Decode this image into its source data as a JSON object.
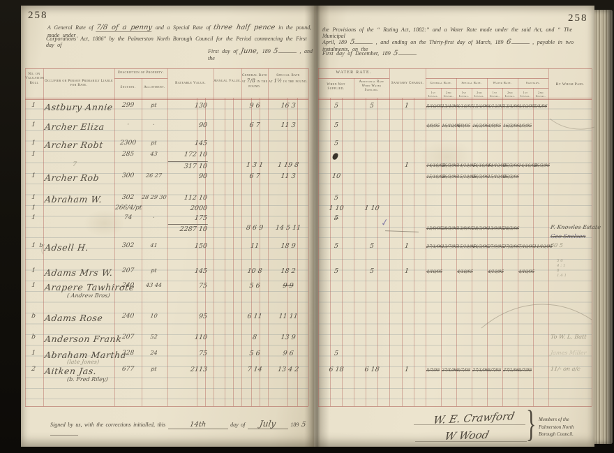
{
  "book": {
    "left_page_number": "258",
    "right_page_number": "258"
  },
  "colors": {
    "page": "#e9e1cb",
    "ruling_red": "#b05c54",
    "ruling_blue": "#7d8a91",
    "ink": "#564f45",
    "pencil": "#98937f",
    "purple": "#7f76a4"
  },
  "left_header": {
    "l1a": "A General Rate of",
    "l1_hw1": "7/8 of a penny",
    "l1b": "and a Special Rate of",
    "l1_hw2": "three half pence",
    "l1c": "in the pound, made under",
    "l2": "Corporations' Act, 1886\" by the Palmerston North Borough Council for the Period commencing the First day of",
    "l3a": "First day of",
    "l3_hw1": "June,",
    "l3b": "189",
    "l3_hw2": "5",
    "l3c": ", and the"
  },
  "right_header": {
    "l1": "the Provisions of the “ Rating Act, 1882:” and a Water Rate made under the said Act, and “ The Municipal",
    "l2a": "April, 189",
    "l2_hw1": "5",
    "l2b": ", and ending on the Thirty-first day of March, 189",
    "l2_hw2": "6",
    "l2c": ", payable in two instalments, on the",
    "l3a": "First day of December, 189",
    "l3_hw1": "5",
    "l3b": "."
  },
  "table_headers": {
    "roll": "No. on\nValuation\nRoll",
    "occupier": "Occupier or Person Primarily Liable for Rate.",
    "description": "Description of Property.",
    "section": "Section.",
    "allotment": "Allotment.",
    "rateable": "Rateable Value.",
    "annual": "Annual Value.",
    "general_title": "General Rate",
    "general_at": "at",
    "general_hw": "7/8",
    "general_pound": "in the pound.",
    "special_title": "Special Rate",
    "special_at": "at",
    "special_hw": "1½",
    "special_pound": "in the pound.",
    "water_rate": "WATER RATE.",
    "when_not": "When Not Supplied.",
    "additional": "Additional Rate When Water Supplied.",
    "sanitary_charge": "Sanitary Charge.",
    "inst_general": "General Rate.",
    "inst_special": "Special Rate.",
    "inst_water": "Water Rate.",
    "inst_sanitary": "Sanitary.",
    "inst_1st": "1st Instal.",
    "inst_2nd": "2nd Instal.",
    "by_whom": "By Whom Paid."
  },
  "rows": [
    {
      "roll": "1",
      "name": "Astbury Annie",
      "sec": "299",
      "allot": "pt",
      "rate": "130",
      "gen": "9 6",
      "spec": "16 3",
      "wns": "5",
      "wadd": "5",
      "san": "1",
      "pay": [
        "5/10/95",
        "13/4/96",
        "4/10/95",
        "13/4/96",
        "4/10/95",
        "13/4/96",
        "4/10/95",
        "5/4/96"
      ]
    },
    {
      "roll": "1",
      "name": "Archer Eliza",
      "sec": "·",
      "allot": "·",
      "rate": "90",
      "gen": "6 7",
      "spec": "11 3",
      "wns": "5",
      "pay": [
        "4/9/95",
        "16/10/95",
        "4/9/95",
        "16/3/96",
        "4/9/95",
        "16/3/96",
        "4/9/95"
      ]
    },
    {
      "roll": "1",
      "name": "Archer Robt",
      "sec": "2300",
      "allot": "pt",
      "rate": "145",
      "wns": "5"
    },
    {
      "roll": "1",
      "sec": "285",
      "allot": "43",
      "rate": "172 10",
      "blot": true
    },
    {
      "pencil_mark": "7",
      "rate": "317 10",
      "rate_sum": true,
      "gen": "1 3 1",
      "spec": "1 19 8",
      "san": "1",
      "pay": [
        "14/10/95",
        "26/3/96",
        "14/10/95",
        "14/10/96",
        "14/10/95",
        "26/3/96",
        "14/10/95",
        "26/3/96"
      ]
    },
    {
      "roll": "1",
      "name": "Archer Rob",
      "sec": "300",
      "allot": "26 27",
      "rate": "90",
      "gen": "6 7",
      "spec": "11 3",
      "wns": "10",
      "pay": [
        "15/10/95",
        "26/3/96",
        "15/10/95",
        "26/3/96",
        "15/10/95",
        "26/3/96"
      ]
    },
    {
      "roll": "1",
      "name": "Abraham W.",
      "sec": "302",
      "allot": "28 29 30",
      "rate": "112 10",
      "wns": "5"
    },
    {
      "roll": "1",
      "sec": "266/4/pt",
      "rate": "2000",
      "wns": "1 10",
      "wadd": "1 10"
    },
    {
      "roll": "1",
      "sec": "74",
      "allot": "·",
      "rate": "175",
      "wns": "5",
      "wns_struck": true
    },
    {
      "rate": "2287 10",
      "rate_sum": true,
      "gen": "8 6 9",
      "spec": "14 5 11",
      "purple": true,
      "pay": [
        "13/9/95",
        "28/3/96",
        "13/9/95",
        "28/3/96",
        "13/9/95",
        "28/3/96"
      ],
      "paid_note": "F. Knowles Estate",
      "paid_note2": "Geo Snelson",
      "paid_note2_struck": true
    },
    {
      "roll": "1",
      "roll2": "b",
      "name": "Adsell H.",
      "sec": "302",
      "allot": "41",
      "rate": "150",
      "gen": "11",
      "spec": "18 9",
      "wns": "5",
      "wadd": "5",
      "san": "1",
      "pay": [
        "27/1/96",
        "13/7/95",
        "15/10/95",
        "14/3/96",
        "27/9/95",
        "27/3/96",
        "7/10/95",
        "11/10/95"
      ],
      "paid_note": "60 5",
      "paid_note_pencil": true
    },
    {
      "roll": "1",
      "name": "Adams Mrs W.",
      "sec": "207",
      "allot": "pt",
      "rate": "145",
      "gen": "10 8",
      "spec": "18 2",
      "wns": "5",
      "wadd": "5",
      "san": "1",
      "pay": [
        "4/10/95",
        null,
        "4/10/95",
        null,
        "4/10/95",
        null,
        "4/10/95"
      ],
      "pencil_math": [
        "5 6",
        "4 : 1",
        "8",
        "1.4 1"
      ]
    },
    {
      "roll": "1",
      "name": "Arapere Tawhirote",
      "sec": "240",
      "allot": "43 44",
      "rate": "75",
      "gen": "5 6",
      "spec": "9 9",
      "spec_struck": true
    },
    {
      "note": "( Andrew Bros)"
    },
    {
      "roll": "b",
      "name": "Adams Rose",
      "sec": "240",
      "allot": "10",
      "rate": "95",
      "gen": "6 11",
      "spec": "11 11"
    },
    {
      "roll": "b",
      "name": "Anderson Frank",
      "sec": "207",
      "allot": "52",
      "rate": "110",
      "gen": "8",
      "spec": "13 9",
      "paid_note": "To W. L. Batt",
      "paid_note_pencil": true
    },
    {
      "roll": "1",
      "name": "Abraham Martha",
      "sec": "328",
      "allot": "24",
      "rate": "75",
      "gen": "5 6",
      "spec": "9 6",
      "wns": "5",
      "paid_note": "James Miller",
      "paid_note_pencil": true,
      "paid_note_faint": true
    },
    {
      "note": "(late Jones)",
      "note_pencil": true
    },
    {
      "roll": "2",
      "name": "Aitken Jas.",
      "sec": "677",
      "allot": "pt",
      "rate": "2113",
      "gen": "7 14",
      "spec": "13 4 2",
      "wns": "6 18",
      "wadd": "6 18",
      "san": "1",
      "pay": [
        "5/7/95",
        "27/1/96",
        "5/7/95",
        "27/1/96",
        "5/7/95",
        "27/1/96",
        "5/7/95"
      ],
      "paid_note": "11/- on a/c",
      "paid_note_pencil": true
    },
    {
      "note": "(b. Fred Riley)"
    }
  ],
  "footer": {
    "signed_a": "Signed by us, with the corrections initialled, this",
    "signed_hw_day": "14th",
    "signed_b": "day of",
    "signed_hw_month": "July",
    "signed_c": "189",
    "signed_hw_year": "5",
    "sig1": "W. E. Crawford",
    "sig2": "W Wood",
    "members_1": "Members of the",
    "members_2": "Palmerston North",
    "members_3": "Borough Council."
  }
}
